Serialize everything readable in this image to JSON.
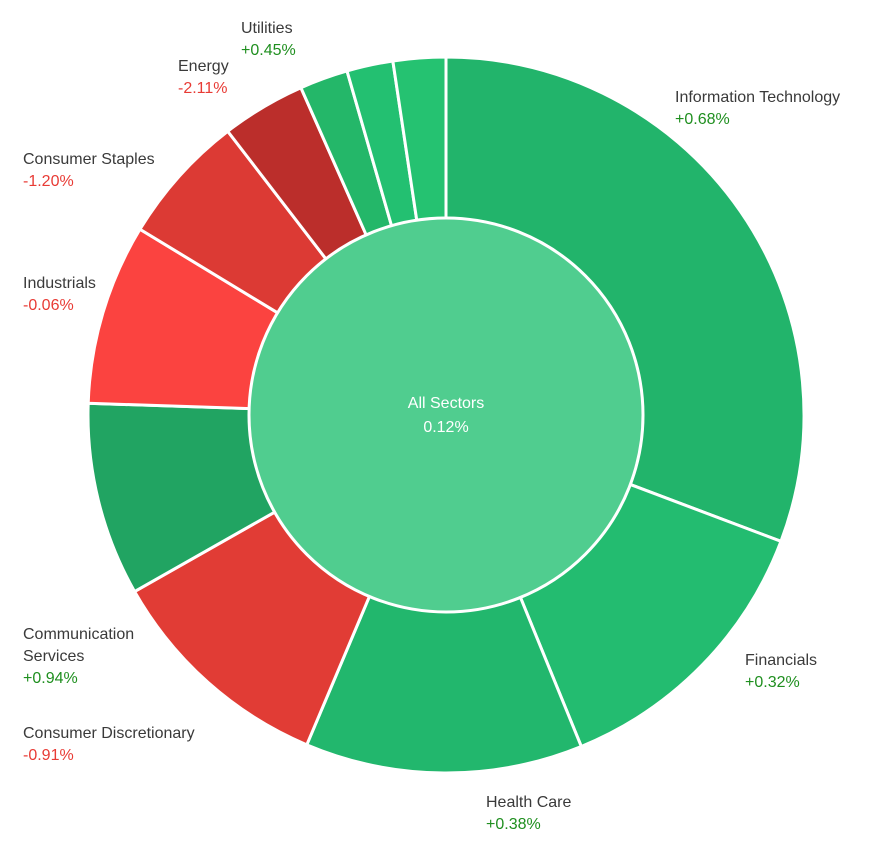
{
  "chart_data": {
    "type": "donut",
    "center": {
      "label": "All Sectors",
      "change": "0.12%",
      "color": "#50cd8f"
    },
    "sectors": [
      {
        "key": "information-technology",
        "name": "Information Technology",
        "change": "+0.68%",
        "weight": 32.4,
        "color": "#22b46b"
      },
      {
        "key": "financials",
        "name": "Financials",
        "change": "+0.32%",
        "weight": 13.8,
        "color": "#23bc70"
      },
      {
        "key": "health-care",
        "name": "Health Care",
        "change": "+0.38%",
        "weight": 13.2,
        "color": "#22b76d"
      },
      {
        "key": "consumer-discretionary",
        "name": "Consumer Discretionary",
        "change": "-0.91%",
        "weight": 11.0,
        "color": "#e13c35"
      },
      {
        "key": "communication-services",
        "name": "Communication Services",
        "change": "+0.94%",
        "weight": 9.2,
        "color": "#21a462"
      },
      {
        "key": "industrials",
        "name": "Industrials",
        "change": "-0.06%",
        "weight": 8.6,
        "color": "#fb4340"
      },
      {
        "key": "consumer-staples",
        "name": "Consumer Staples",
        "change": "-1.20%",
        "weight": 6.2,
        "color": "#dc3a34"
      },
      {
        "key": "energy",
        "name": "Energy",
        "change": "-2.11%",
        "weight": 4.0,
        "color": "#bb2e2b"
      },
      {
        "key": "sector-a",
        "name": "",
        "change": "",
        "weight": 2.3,
        "color": "#24b769"
      },
      {
        "key": "sector-b",
        "name": "",
        "change": "",
        "weight": 2.2,
        "color": "#23c071"
      },
      {
        "key": "utilities",
        "name": "Utilities",
        "change": "+0.45%",
        "weight": 2.5,
        "color": "#25c271"
      }
    ]
  }
}
